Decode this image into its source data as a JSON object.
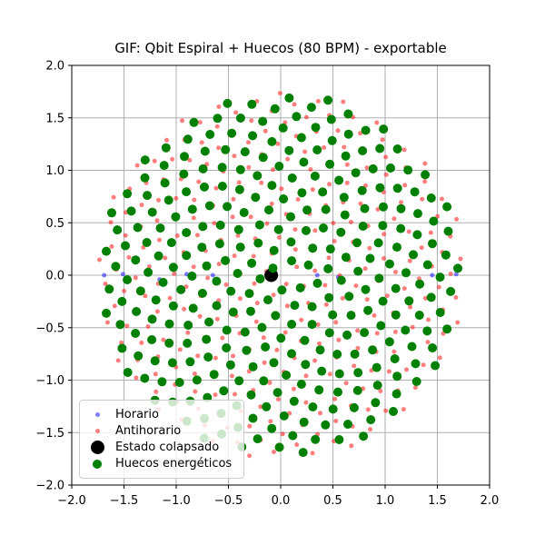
{
  "chart_data": {
    "type": "scatter",
    "title": "GIF: Qbit Espiral + Huecos (80 BPM) - exportable",
    "xlabel": "",
    "ylabel": "",
    "xlim": [
      -2.0,
      2.0
    ],
    "ylim": [
      -2.0,
      2.0
    ],
    "xticks": [
      -2.0,
      -1.5,
      -1.0,
      -0.5,
      0.0,
      0.5,
      1.0,
      1.5,
      2.0
    ],
    "yticks": [
      -2.0,
      -1.5,
      -1.0,
      -0.5,
      0.0,
      0.5,
      1.0,
      1.5,
      2.0
    ],
    "xtick_labels": [
      "−2.0",
      "−1.5",
      "−1.0",
      "−0.5",
      "0.0",
      "0.5",
      "1.0",
      "1.5",
      "2.0"
    ],
    "ytick_labels": [
      "−2.0",
      "−1.5",
      "−1.0",
      "−0.5",
      "0.0",
      "0.5",
      "1.0",
      "1.5",
      "2.0"
    ],
    "grid": true,
    "colors": {
      "grid": "#b0b0b0",
      "axes": "#000000",
      "background": "#ffffff",
      "legend_border": "#cccccc"
    },
    "legend": {
      "position": "lower-left"
    },
    "pattern_note": "phyllotaxis generator: r = scale*sqrt(n), theta = n*angle_deg + rotation_deg, n = 1..n_points",
    "series": [
      {
        "name": "Horario",
        "color": "#0000ff",
        "alpha": 0.5,
        "marker_px": 5,
        "points": [
          [
            -1.69,
            0.0
          ],
          [
            -1.51,
            0.01
          ],
          [
            -1.16,
            -0.04
          ],
          [
            -0.9,
            0.01
          ],
          [
            -0.65,
            0.0
          ],
          [
            -0.42,
            0.02
          ],
          [
            -0.2,
            -0.04
          ],
          [
            0.35,
            0.0
          ],
          [
            0.55,
            -0.02
          ],
          [
            0.72,
            0.04
          ],
          [
            0.93,
            -0.04
          ],
          [
            1.19,
            0.01
          ],
          [
            1.45,
            0.0
          ],
          [
            1.68,
            0.01
          ]
        ]
      },
      {
        "name": "Antihorario",
        "color": "#ff0000",
        "alpha": 0.5,
        "marker_px": 5,
        "generator": {
          "pattern": "phyllotaxis",
          "n_points": 312,
          "scale": 0.1,
          "angle_deg": -137.50776,
          "rotation_deg": 80
        }
      },
      {
        "name": "Estado colapsado",
        "color": "#000000",
        "alpha": 1.0,
        "marker_px": 15,
        "points": [
          [
            -0.09,
            0.0
          ]
        ]
      },
      {
        "name": "Huecos energéticos",
        "color": "#008000",
        "alpha": 1.0,
        "marker_px": 10,
        "generator": {
          "pattern": "phyllotaxis",
          "n_points": 300,
          "scale": 0.1,
          "angle_deg": 137.50776,
          "rotation_deg": 0
        }
      }
    ]
  }
}
